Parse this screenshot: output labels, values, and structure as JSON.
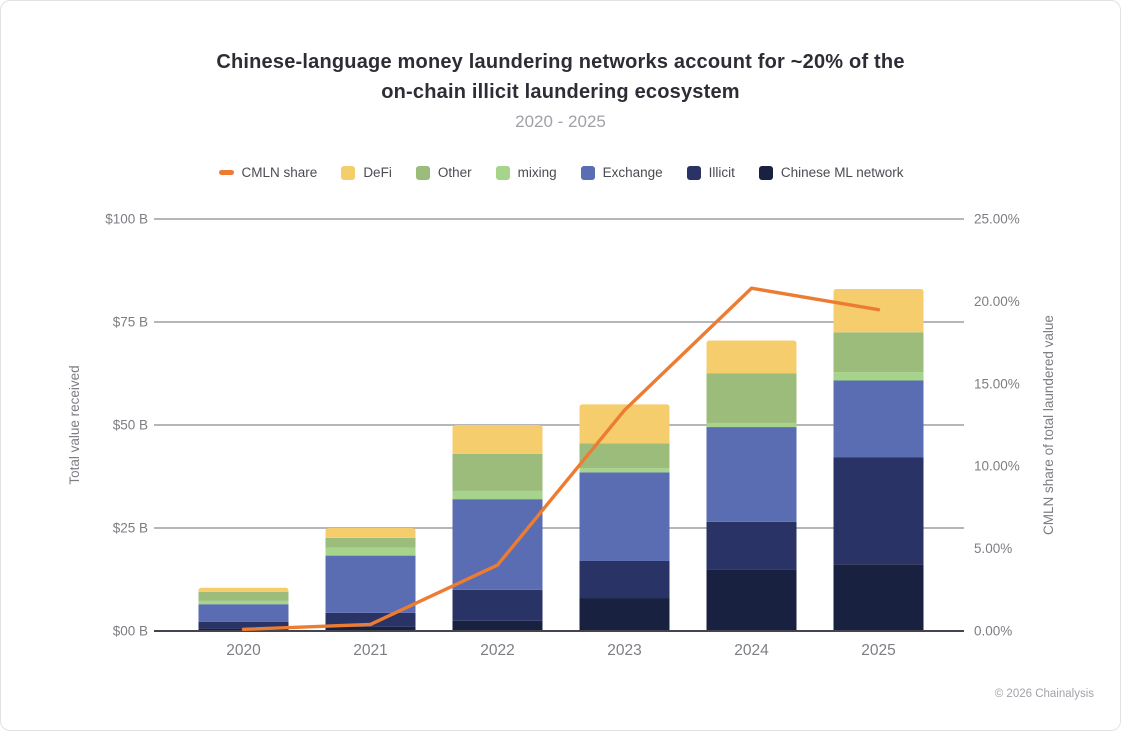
{
  "header": {
    "title_line1": "Chinese-language money laundering networks account for ~20% of the",
    "title_line2": "on-chain illicit laundering ecosystem",
    "subtitle": "2020 - 2025"
  },
  "footer": {
    "credit": "© 2026 Chainalysis"
  },
  "colors": {
    "accent_orange": "#ED7C33",
    "defi": "#F5CD6C",
    "other": "#9CBC7B",
    "mixing": "#A6D48A",
    "exchange": "#5A6CB2",
    "illicit": "#293366",
    "cmln": "#192141",
    "grid": "#8a8a90",
    "axis_line": "#44444c",
    "tick_text": "#7d7d84",
    "title_text": "#2d2d35",
    "subtitle_text": "#a0a0a8"
  },
  "chart_data": {
    "type": "bar",
    "stacked": true,
    "title": "Chinese-language money laundering networks account for ~20% of the on-chain illicit laundering ecosystem",
    "subtitle": "2020 - 2025",
    "categories": [
      "2020",
      "2021",
      "2022",
      "2023",
      "2024",
      "2025"
    ],
    "series": [
      {
        "key": "cmln",
        "name": "Chinese ML network",
        "color_key": "cmln",
        "values": [
          0.5,
          1.0,
          2.5,
          8.0,
          15.0,
          16.2
        ]
      },
      {
        "key": "illicit",
        "name": "Illicit",
        "color_key": "illicit",
        "values": [
          1.7,
          3.4,
          7.5,
          9.0,
          11.5,
          26.0
        ]
      },
      {
        "key": "exchange",
        "name": "Exchange",
        "color_key": "exchange",
        "values": [
          4.3,
          13.9,
          22.0,
          21.5,
          23.0,
          18.6
        ]
      },
      {
        "key": "mixing",
        "name": "mixing",
        "color_key": "mixing",
        "values": [
          0.8,
          1.9,
          2.0,
          1.0,
          1.0,
          2.0
        ]
      },
      {
        "key": "other",
        "name": "Other",
        "color_key": "other",
        "values": [
          2.2,
          2.4,
          9.0,
          6.0,
          12.0,
          9.7
        ]
      },
      {
        "key": "defi",
        "name": "DeFi",
        "color_key": "defi",
        "values": [
          1.0,
          2.4,
          7.0,
          9.5,
          8.0,
          10.5
        ]
      }
    ],
    "bar_totals": [
      10.5,
      25.0,
      50.0,
      55.0,
      70.5,
      83.0
    ],
    "line_overlay": {
      "key": "cmln_share",
      "name": "CMLN share",
      "axis": "right",
      "values_pct": [
        0.1,
        0.4,
        4.0,
        13.4,
        20.8,
        19.5
      ]
    },
    "left_axis": {
      "label": "Total value received",
      "ticks": [
        "$00 B",
        "$25 B",
        "$50 B",
        "$75 B",
        "$100 B"
      ],
      "range": [
        0,
        100
      ],
      "grid": true
    },
    "right_axis": {
      "label": "CMLN share of total laundered value",
      "ticks": [
        "0.00%",
        "5.00%",
        "10.00%",
        "15.00%",
        "20.00%",
        "25.00%"
      ],
      "range": [
        0,
        25
      ],
      "grid": false
    },
    "legend": [
      {
        "key": "cmln-share",
        "label": "CMLN share",
        "swatch": "line",
        "color_key": "accent_orange"
      },
      {
        "key": "defi",
        "label": "DeFi",
        "swatch": "square",
        "color_key": "defi"
      },
      {
        "key": "other",
        "label": "Other",
        "swatch": "square",
        "color_key": "other"
      },
      {
        "key": "mixing",
        "label": "mixing",
        "swatch": "square",
        "color_key": "mixing"
      },
      {
        "key": "exchange",
        "label": "Exchange",
        "swatch": "square",
        "color_key": "exchange"
      },
      {
        "key": "illicit",
        "label": "Illicit",
        "swatch": "square",
        "color_key": "illicit"
      },
      {
        "key": "chinese-ml-network",
        "label": "Chinese ML network",
        "swatch": "square",
        "color_key": "cmln"
      }
    ],
    "legend_position": "top"
  }
}
